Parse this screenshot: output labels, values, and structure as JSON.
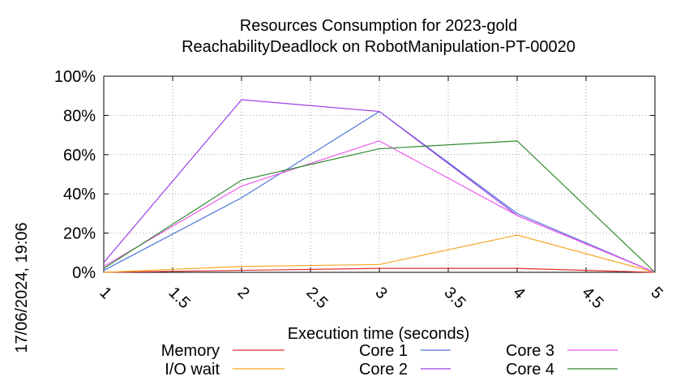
{
  "chart_data": {
    "type": "line",
    "title": "Resources Consumption for 2023-gold",
    "subtitle": "ReachabilityDeadlock on RobotManipulation-PT-00020",
    "xlabel": "Execution time (seconds)",
    "ylabel": "",
    "timestamp": "17/06/2024, 19:06",
    "xlim": [
      1,
      5
    ],
    "ylim": [
      0,
      100
    ],
    "x_ticks": [
      "1",
      "1.5",
      "2",
      "2.5",
      "3",
      "3.5",
      "4",
      "4.5",
      "5"
    ],
    "y_ticks": [
      "0%",
      "20%",
      "40%",
      "60%",
      "80%",
      "100%"
    ],
    "grid": true,
    "legend_position": "bottom",
    "x": [
      1,
      2,
      3,
      4,
      5
    ],
    "series": [
      {
        "name": "Memory",
        "color": "#e03030",
        "values": [
          0,
          1,
          2,
          2,
          0
        ]
      },
      {
        "name": "I/O wait",
        "color": "#f5a623",
        "values": [
          0,
          3,
          4,
          19,
          0
        ]
      },
      {
        "name": "Core 1",
        "color": "#4f74d9",
        "values": [
          1,
          38,
          82,
          30,
          0
        ]
      },
      {
        "name": "Core 2",
        "color": "#9b3fe8",
        "values": [
          5,
          88,
          82,
          29,
          0
        ]
      },
      {
        "name": "Core 3",
        "color": "#ee55ee",
        "values": [
          3,
          44,
          67,
          29,
          0
        ]
      },
      {
        "name": "Core 4",
        "color": "#2f8a2f",
        "values": [
          2,
          47,
          63,
          67,
          0
        ]
      }
    ]
  }
}
